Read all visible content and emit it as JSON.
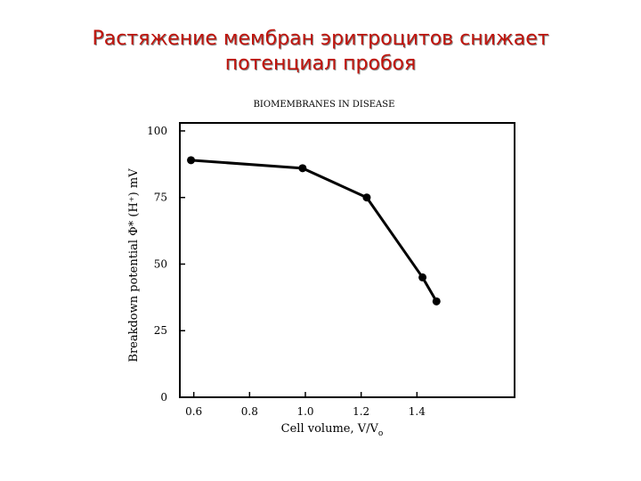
{
  "slide": {
    "title_line1": "Растяжение мембран эритроцитов снижает",
    "title_line2": "потенциал пробоя"
  },
  "chart_data": {
    "type": "line",
    "header": "BIOMEMBRANES IN DISEASE",
    "xlabel": "Cell volume, V/V",
    "xlabel_subscript": "o",
    "ylabel": "Breakdown potential    Φ* (H⁺) mV",
    "x_ticks": [
      0.6,
      0.8,
      1.0,
      1.2,
      1.4
    ],
    "x_tick_labels": [
      "0.6",
      "0.8",
      "1.0",
      "1.2",
      "1.4"
    ],
    "y_ticks": [
      0,
      25,
      50,
      75,
      100
    ],
    "y_tick_labels": [
      "0",
      "25",
      "50",
      "75",
      "100"
    ],
    "xlim": [
      0.55,
      1.75
    ],
    "ylim": [
      0,
      103
    ],
    "grid": false,
    "series": [
      {
        "x": [
          0.59,
          0.99,
          1.22,
          1.42,
          1.47
        ],
        "y": [
          89,
          86,
          75,
          45,
          36
        ]
      }
    ],
    "line_color": "#000000"
  }
}
